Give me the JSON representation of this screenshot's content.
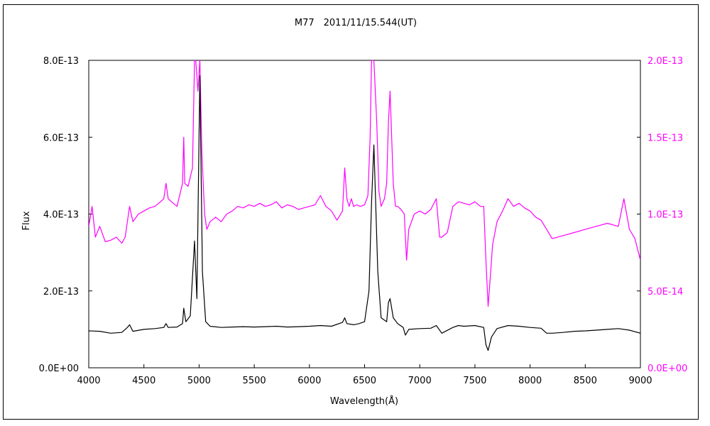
{
  "chart_data": {
    "type": "line",
    "title": "M77　2011/11/15.544(UT)",
    "xlabel": "Wavelength(Å)",
    "ylabel": "Flux",
    "x_range": [
      4000,
      9000
    ],
    "x_ticks": [
      4000,
      4500,
      5000,
      5500,
      6000,
      6500,
      7000,
      7500,
      8000,
      8500,
      9000
    ],
    "x_tick_labels": [
      "4000",
      "4500",
      "5000",
      "5500",
      "6000",
      "6500",
      "7000",
      "7500",
      "8000",
      "8500",
      "9000"
    ],
    "y_left_range": [
      0,
      8e-13
    ],
    "y_left_ticks": [
      0,
      2e-13,
      4e-13,
      6e-13,
      8e-13
    ],
    "y_left_tick_labels": [
      "0.0E+00",
      "2.0E-13",
      "4.0E-13",
      "6.0E-13",
      "8.0E-13"
    ],
    "y_right_range": [
      0,
      2e-13
    ],
    "y_right_ticks": [
      0,
      5e-14,
      1e-13,
      1.5e-13,
      2e-13
    ],
    "y_right_tick_labels": [
      "0.0E+00",
      "5.0E-14",
      "1.0E-13",
      "1.5E-13",
      "2.0E-13"
    ],
    "grid": false,
    "legend": "none",
    "colors": {
      "series_left": "#000000",
      "series_right": "#ff00ff",
      "axis_right": "#ff00ff"
    },
    "series": [
      {
        "axis": "left",
        "x": [
          4000,
          4100,
          4200,
          4300,
          4350,
          4370,
          4400,
          4500,
          4600,
          4680,
          4700,
          4720,
          4800,
          4850,
          4861,
          4880,
          4920,
          4959,
          4980,
          5007,
          5030,
          5060,
          5100,
          5200,
          5300,
          5400,
          5500,
          5600,
          5700,
          5800,
          5900,
          6000,
          6100,
          6200,
          6300,
          6320,
          6340,
          6400,
          6450,
          6500,
          6540,
          6563,
          6584,
          6620,
          6650,
          6700,
          6716,
          6731,
          6760,
          6800,
          6850,
          6870,
          6900,
          7000,
          7100,
          7150,
          7200,
          7300,
          7350,
          7400,
          7500,
          7580,
          7600,
          7620,
          7650,
          7700,
          7800,
          7900,
          8000,
          8100,
          8150,
          8200,
          8300,
          8400,
          8500,
          8600,
          8700,
          8800,
          8900,
          9000
        ],
        "y": [
          9.6e-14,
          9.5e-14,
          9e-14,
          9.2e-14,
          1.05e-13,
          1.12e-13,
          9.5e-14,
          1e-13,
          1.02e-13,
          1.05e-13,
          1.15e-13,
          1.05e-13,
          1.06e-13,
          1.15e-13,
          1.55e-13,
          1.2e-13,
          1.35e-13,
          3.3e-13,
          1.8e-13,
          7.6e-13,
          2.5e-13,
          1.2e-13,
          1.08e-13,
          1.05e-13,
          1.06e-13,
          1.07e-13,
          1.06e-13,
          1.07e-13,
          1.08e-13,
          1.06e-13,
          1.07e-13,
          1.08e-13,
          1.1e-13,
          1.08e-13,
          1.18e-13,
          1.3e-13,
          1.15e-13,
          1.12e-13,
          1.15e-13,
          1.2e-13,
          2e-13,
          4.3e-13,
          5.8e-13,
          2.5e-13,
          1.3e-13,
          1.2e-13,
          1.7e-13,
          1.8e-13,
          1.3e-13,
          1.15e-13,
          1.05e-13,
          8.5e-14,
          1e-13,
          1.02e-13,
          1.03e-13,
          1.1e-13,
          9e-14,
          1.05e-13,
          1.1e-13,
          1.08e-13,
          1.1e-13,
          1.05e-13,
          6e-14,
          4.5e-14,
          8e-14,
          1.02e-13,
          1.1e-13,
          1.08e-13,
          1.05e-13,
          1.03e-13,
          9e-14,
          9e-14,
          9.2e-14,
          9.5e-14,
          9.6e-14,
          9.8e-14,
          1e-13,
          1.02e-13,
          9.8e-14,
          9e-14
        ]
      },
      {
        "axis": "right",
        "x": [
          4000,
          4030,
          4060,
          4100,
          4150,
          4200,
          4250,
          4300,
          4330,
          4350,
          4370,
          4400,
          4450,
          4500,
          4550,
          4600,
          4650,
          4680,
          4700,
          4720,
          4750,
          4800,
          4850,
          4861,
          4870,
          4900,
          4940,
          4959,
          4970,
          4990,
          5007,
          5025,
          5050,
          5070,
          5100,
          5150,
          5200,
          5250,
          5300,
          5350,
          5400,
          5450,
          5500,
          5550,
          5600,
          5650,
          5700,
          5750,
          5800,
          5850,
          5900,
          5950,
          6000,
          6050,
          6100,
          6150,
          6200,
          6250,
          6300,
          6320,
          6340,
          6360,
          6380,
          6400,
          6430,
          6460,
          6500,
          6530,
          6550,
          6563,
          6584,
          6610,
          6630,
          6650,
          6680,
          6700,
          6716,
          6731,
          6760,
          6780,
          6800,
          6830,
          6860,
          6880,
          6900,
          6950,
          7000,
          7050,
          7100,
          7150,
          7180,
          7200,
          7250,
          7300,
          7350,
          7400,
          7450,
          7500,
          7550,
          7580,
          7600,
          7620,
          7640,
          7660,
          7700,
          7750,
          7800,
          7850,
          7900,
          7950,
          8000,
          8050,
          8100,
          8150,
          8200,
          8300,
          8400,
          8500,
          8600,
          8700,
          8800,
          8850,
          8900,
          8950,
          9000
        ],
        "y": [
          9.2e-14,
          1.05e-13,
          8.5e-14,
          9.2e-14,
          8.2e-14,
          8.3e-14,
          8.5e-14,
          8.1e-14,
          8.5e-14,
          9.5e-14,
          1.05e-13,
          9.5e-14,
          1e-13,
          1.02e-13,
          1.04e-13,
          1.05e-13,
          1.08e-13,
          1.1e-13,
          1.2e-13,
          1.1e-13,
          1.08e-13,
          1.05e-13,
          1.2e-13,
          1.5e-13,
          1.2e-13,
          1.18e-13,
          1.3e-13,
          2e-13,
          2e-13,
          1.8e-13,
          2e-13,
          1.4e-13,
          1e-13,
          9e-14,
          9.5e-14,
          9.8e-14,
          9.5e-14,
          1e-13,
          1.02e-13,
          1.05e-13,
          1.04e-13,
          1.06e-13,
          1.05e-13,
          1.07e-13,
          1.05e-13,
          1.06e-13,
          1.08e-13,
          1.04e-13,
          1.06e-13,
          1.05e-13,
          1.03e-13,
          1.04e-13,
          1.05e-13,
          1.06e-13,
          1.12e-13,
          1.05e-13,
          1.02e-13,
          9.6e-14,
          1.02e-13,
          1.3e-13,
          1.1e-13,
          1.05e-13,
          1.1e-13,
          1.05e-13,
          1.06e-13,
          1.05e-13,
          1.06e-13,
          1.12e-13,
          1.5e-13,
          2e-13,
          2e-13,
          1.6e-13,
          1.15e-13,
          1.05e-13,
          1.1e-13,
          1.2e-13,
          1.6e-13,
          1.8e-13,
          1.2e-13,
          1.05e-13,
          1.05e-13,
          1.03e-13,
          1e-13,
          7e-14,
          9e-14,
          1e-13,
          1.02e-13,
          1e-13,
          1.03e-13,
          1.1e-13,
          8.5e-14,
          8.5e-14,
          8.8e-14,
          1.05e-13,
          1.08e-13,
          1.07e-13,
          1.06e-13,
          1.08e-13,
          1.05e-13,
          1.05e-13,
          7e-14,
          4e-14,
          6e-14,
          8e-14,
          9.5e-14,
          1.02e-13,
          1.1e-13,
          1.05e-13,
          1.07e-13,
          1.04e-13,
          1.02e-13,
          9.8e-14,
          9.6e-14,
          9e-14,
          8.4e-14,
          8.6e-14,
          8.8e-14,
          9e-14,
          9.2e-14,
          9.4e-14,
          9.2e-14,
          1.1e-13,
          9e-14,
          8.4e-14,
          7e-14
        ]
      }
    ]
  }
}
